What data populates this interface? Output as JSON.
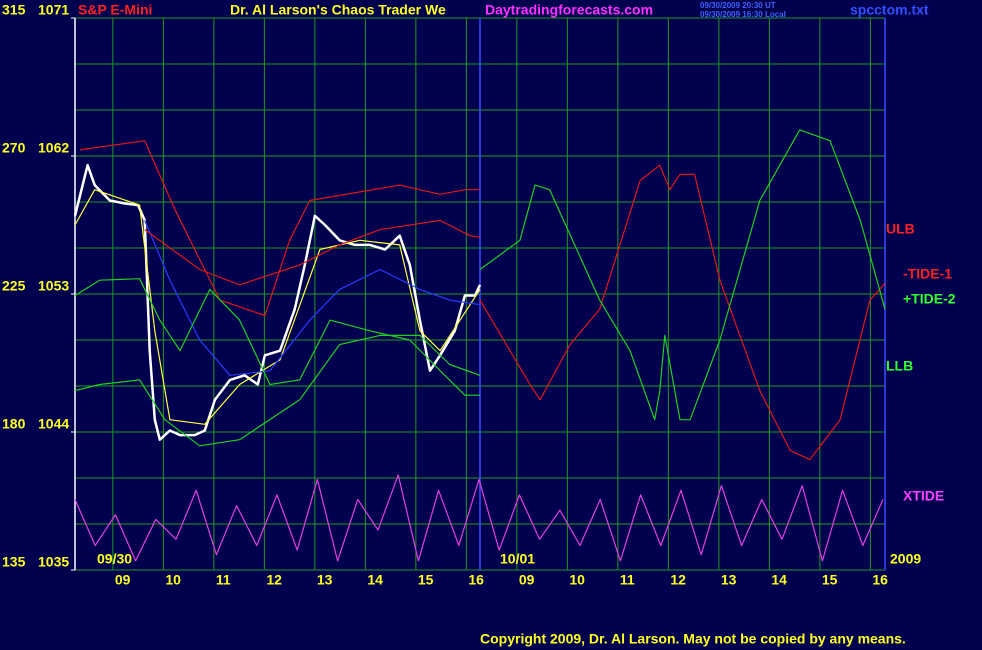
{
  "chart_data": {
    "type": "line",
    "instrument": "S&P E-Mini",
    "title": "Dr. Al Larson's Chaos Trader We",
    "website": "Daytradingforecasts.com",
    "timestamps": [
      "09/30/2009 20:30 UT",
      "09/30/2009 16:30 Local"
    ],
    "filename": "spcctom.txt",
    "date_labels": [
      "09/30",
      "10/01",
      "2009"
    ],
    "copyright": "Copyright 2009, Dr. Al Larson. May not be copied by any means.",
    "xlim": [
      0.25,
      16.29
    ],
    "xticks": [
      {
        "value": 1,
        "label": "09"
      },
      {
        "value": 2,
        "label": "10"
      },
      {
        "value": 3,
        "label": "11"
      },
      {
        "value": 4,
        "label": "12"
      },
      {
        "value": 5,
        "label": "13"
      },
      {
        "value": 6,
        "label": "14"
      },
      {
        "value": 7,
        "label": "15"
      },
      {
        "value": 8,
        "label": "16"
      },
      {
        "value": 9,
        "label": "09"
      },
      {
        "value": 10,
        "label": "10"
      },
      {
        "value": 11,
        "label": "11"
      },
      {
        "value": 12,
        "label": "12"
      },
      {
        "value": 13,
        "label": "13"
      },
      {
        "value": 14,
        "label": "14"
      },
      {
        "value": 15,
        "label": "15"
      },
      {
        "value": 16,
        "label": "16"
      }
    ],
    "ylim": [
      1035,
      1071
    ],
    "yticks": [
      1035,
      1044,
      1053,
      1062,
      1071
    ],
    "ygrid": [
      1035,
      1038,
      1041,
      1044,
      1047,
      1050,
      1053,
      1056,
      1059,
      1062,
      1065,
      1068,
      1071
    ],
    "y2lim": [
      135,
      315
    ],
    "y2ticks": [
      135,
      180,
      225,
      270,
      315
    ],
    "grid": true,
    "series": [
      {
        "color": "#ffffff",
        "x": [
          0.25,
          0.5,
          0.64,
          0.94,
          1.24,
          1.5,
          1.63,
          1.73,
          1.83,
          1.93,
          2.13,
          2.33,
          2.62,
          2.82,
          3.02,
          3.32,
          3.61,
          3.87,
          4.01,
          4.31,
          4.6,
          4.8,
          5.0,
          5.2,
          5.49,
          5.79,
          6.09,
          6.39,
          6.68,
          6.88,
          7.08,
          7.28,
          7.48,
          7.77,
          7.97,
          8.17,
          8.27
        ],
        "values": [
          1058.1,
          1061.4,
          1060.1,
          1059.1,
          1058.9,
          1058.8,
          1057.8,
          1049.3,
          1044.8,
          1043.5,
          1044.1,
          1043.8,
          1043.8,
          1044.1,
          1046.1,
          1047.4,
          1047.7,
          1047.1,
          1049.0,
          1049.3,
          1052.0,
          1054.9,
          1058.1,
          1057.5,
          1056.5,
          1056.2,
          1056.2,
          1055.9,
          1056.8,
          1054.9,
          1051.3,
          1048.0,
          1049.0,
          1050.6,
          1052.9,
          1052.9,
          1053.6
        ]
      },
      {
        "color": "#ffff40",
        "x": [
          0.25,
          0.64,
          1.53,
          1.83,
          2.13,
          2.82,
          3.51,
          4.31,
          5.1,
          5.89,
          6.68,
          7.08,
          7.48,
          8.27
        ],
        "values": [
          1057.5,
          1059.8,
          1058.8,
          1050.6,
          1044.8,
          1044.5,
          1047.1,
          1048.7,
          1055.9,
          1056.5,
          1056.2,
          1050.6,
          1049.3,
          1053.3
        ]
      },
      {
        "color": "#2a3cff",
        "x": [
          1.63,
          2.13,
          2.72,
          3.32,
          4.11,
          4.9,
          5.49,
          6.29,
          7.08,
          7.67,
          8.27
        ],
        "values": [
          1057.8,
          1053.9,
          1050.0,
          1047.7,
          1048.0,
          1051.3,
          1053.3,
          1054.6,
          1053.3,
          1052.6,
          1052.3
        ]
      },
      {
        "name": "ULB",
        "color": "#e01818",
        "x": [
          0.35,
          1.63,
          2.23,
          3.12,
          4.01,
          4.5,
          4.9,
          6.68,
          7.48,
          7.97,
          8.27
        ],
        "values": [
          1062.4,
          1063.0,
          1058.5,
          1052.6,
          1051.6,
          1056.5,
          1059.1,
          1060.1,
          1059.5,
          1059.8,
          1059.8
        ]
      },
      {
        "color": "#e01818",
        "x": [
          1.63,
          2.72,
          3.51,
          4.7,
          5.49,
          6.29,
          7.48,
          8.07,
          8.27
        ],
        "values": [
          1057.2,
          1054.6,
          1053.6,
          1054.9,
          1056.2,
          1057.2,
          1057.8,
          1056.8,
          1056.7
        ]
      },
      {
        "color": "#20d020",
        "x": [
          0.25,
          0.74,
          1.53,
          1.93,
          2.33,
          2.92,
          3.51,
          4.11,
          4.7,
          5.3,
          6.09,
          6.88,
          7.48,
          7.97,
          8.27
        ],
        "values": [
          1052.9,
          1053.9,
          1054.0,
          1051.3,
          1049.3,
          1053.3,
          1051.3,
          1047.1,
          1047.4,
          1051.3,
          1050.6,
          1050.0,
          1048.0,
          1046.4,
          1046.4
        ]
      },
      {
        "name": "LLB",
        "color": "#20d020",
        "x": [
          0.25,
          0.74,
          1.53,
          2.03,
          2.72,
          3.51,
          4.7,
          5.49,
          6.29,
          7.08,
          7.67,
          8.27
        ],
        "values": [
          1046.7,
          1047.1,
          1047.4,
          1044.8,
          1043.1,
          1043.5,
          1046.1,
          1049.7,
          1050.3,
          1050.3,
          1048.4,
          1047.7
        ]
      },
      {
        "name": "-TIDE-1",
        "color": "#e01818",
        "x": [
          8.27,
          9.26,
          9.46,
          10.05,
          10.64,
          11.44,
          11.83,
          12.03,
          12.23,
          12.52,
          13.02,
          13.81,
          14.41,
          14.8,
          15.4,
          15.99,
          16.29
        ],
        "values": [
          1052.6,
          1047.1,
          1046.1,
          1049.7,
          1052.0,
          1060.4,
          1061.4,
          1059.8,
          1060.8,
          1060.8,
          1053.9,
          1046.7,
          1042.8,
          1042.2,
          1044.8,
          1052.6,
          1053.7
        ]
      },
      {
        "name": "+TIDE-2",
        "color": "#20d020",
        "x": [
          8.27,
          9.06,
          9.36,
          9.65,
          10.64,
          11.24,
          11.73,
          11.83,
          11.93,
          12.23,
          12.43,
          13.02,
          13.81,
          14.6,
          15.2,
          15.8,
          16.29
        ],
        "values": [
          1054.6,
          1056.5,
          1060.1,
          1059.8,
          1052.6,
          1049.3,
          1044.8,
          1046.7,
          1050.3,
          1044.8,
          1044.8,
          1050.0,
          1059.1,
          1063.7,
          1063.0,
          1057.8,
          1052.0
        ]
      },
      {
        "name": "XTIDE",
        "color": "#e040e0",
        "x": [
          0.25,
          0.65,
          1.05,
          1.45,
          1.85,
          2.25,
          2.65,
          3.05,
          3.45,
          3.85,
          4.25,
          4.65,
          5.05,
          5.45,
          5.85,
          6.25,
          6.65,
          7.05,
          7.45,
          7.85,
          8.25,
          8.65,
          9.05,
          9.45,
          9.85,
          10.25,
          10.65,
          11.05,
          11.45,
          11.85,
          12.25,
          12.65,
          13.05,
          13.45,
          13.85,
          14.25,
          14.65,
          15.05,
          15.45,
          15.85,
          16.25
        ],
        "values": [
          1039.6,
          1036.6,
          1038.6,
          1035.6,
          1038.3,
          1037.0,
          1040.2,
          1036.0,
          1039.2,
          1036.6,
          1039.9,
          1036.3,
          1040.9,
          1035.6,
          1039.6,
          1037.6,
          1041.2,
          1035.6,
          1040.2,
          1036.6,
          1040.9,
          1036.3,
          1039.9,
          1037.0,
          1038.9,
          1036.6,
          1039.6,
          1035.6,
          1039.9,
          1036.6,
          1040.2,
          1036.0,
          1040.5,
          1036.6,
          1039.6,
          1037.0,
          1040.5,
          1035.6,
          1040.2,
          1036.6,
          1039.6
        ]
      }
    ]
  }
}
